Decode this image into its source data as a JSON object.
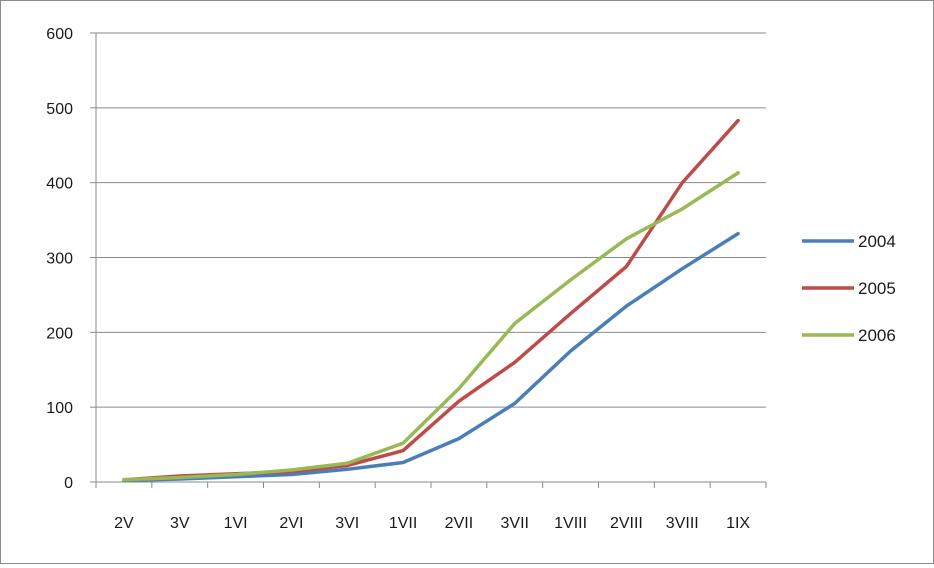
{
  "chart_data": {
    "type": "line",
    "title": "",
    "xlabel": "",
    "ylabel": "",
    "categories": [
      "2V",
      "3V",
      "1VI",
      "2VI",
      "3VI",
      "1VII",
      "2VII",
      "3VII",
      "1VIII",
      "2VIII",
      "3VIII",
      "1IX"
    ],
    "ylim": [
      0,
      600
    ],
    "yticks": [
      "0",
      "100",
      "200",
      "300",
      "400",
      "500",
      "600"
    ],
    "grid": true,
    "legend_position": "right",
    "series": [
      {
        "name": "2004",
        "color": "#4a7ebb",
        "values": [
          2,
          4,
          7,
          10,
          17,
          26,
          58,
          105,
          175,
          235,
          285,
          332
        ]
      },
      {
        "name": "2005",
        "color": "#be4b48",
        "values": [
          3,
          8,
          11,
          14,
          22,
          42,
          108,
          160,
          225,
          288,
          400,
          483
        ]
      },
      {
        "name": "2006",
        "color": "#98b954",
        "values": [
          3,
          6,
          10,
          16,
          25,
          52,
          125,
          212,
          270,
          325,
          365,
          413
        ]
      }
    ]
  }
}
